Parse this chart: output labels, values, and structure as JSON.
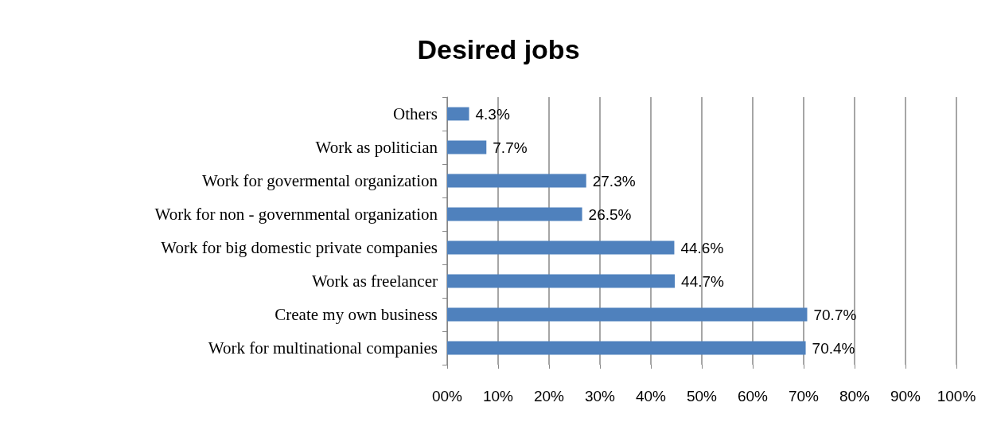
{
  "chart_data": {
    "type": "bar",
    "orientation": "horizontal",
    "title": "Desired jobs",
    "categories": [
      "Others",
      "Work as politician",
      "Work for govermental organization",
      "Work for non - governmental organization",
      "Work for big domestic private companies",
      "Work as freelancer",
      "Create my own business",
      "Work for multinational companies"
    ],
    "values": [
      4.3,
      7.7,
      27.3,
      26.5,
      44.6,
      44.7,
      70.7,
      70.4
    ],
    "value_labels": [
      "4.3%",
      "7.7%",
      "27.3%",
      "26.5%",
      "44.6%",
      "44.7%",
      "70.7%",
      "70.4%"
    ],
    "color": "#4f81bd",
    "xlim": [
      0,
      100
    ],
    "xticks": [
      {
        "value": 0,
        "label": "00%"
      },
      {
        "value": 10,
        "label": "10%"
      },
      {
        "value": 20,
        "label": "20%"
      },
      {
        "value": 30,
        "label": "30%"
      },
      {
        "value": 40,
        "label": "40%"
      },
      {
        "value": 50,
        "label": "50%"
      },
      {
        "value": 60,
        "label": "60%"
      },
      {
        "value": 70,
        "label": "70%"
      },
      {
        "value": 80,
        "label": "80%"
      },
      {
        "value": 90,
        "label": "90%"
      },
      {
        "value": 100,
        "label": "100%"
      }
    ],
    "grid": "x"
  }
}
